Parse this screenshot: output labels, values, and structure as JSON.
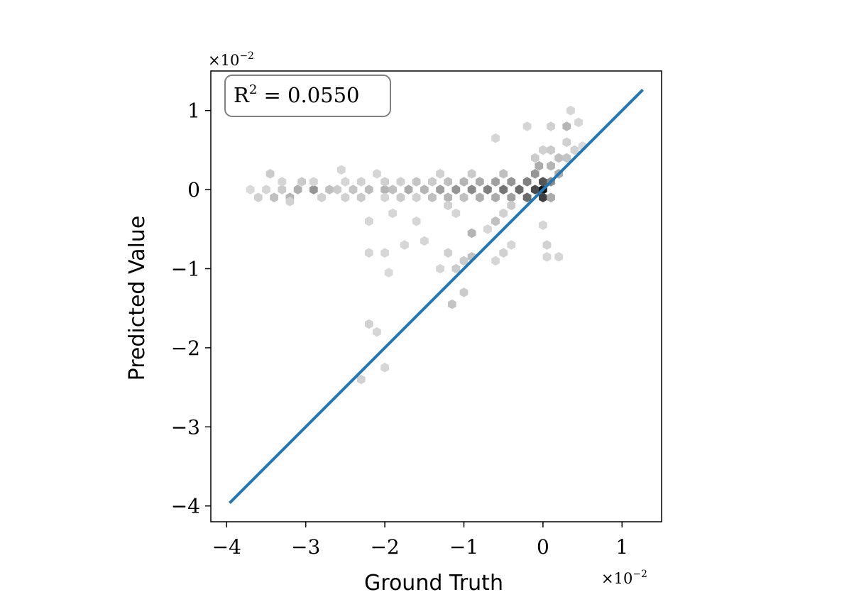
{
  "chart_data": {
    "type": "hexbin",
    "title": "",
    "xlabel": "Ground Truth",
    "ylabel": "Predicted Value",
    "x_multiplier": {
      "base": "×10",
      "exp": "−2"
    },
    "y_multiplier": {
      "base": "×10",
      "exp": "−2"
    },
    "xlim": [
      -4.2,
      1.5
    ],
    "ylim": [
      -4.2,
      1.5
    ],
    "xticks": [
      -4,
      -3,
      -2,
      -1,
      0,
      1
    ],
    "yticks": [
      -4,
      -3,
      -2,
      -1,
      0,
      1
    ],
    "xtick_labels": [
      "−4",
      "−3",
      "−2",
      "−1",
      "0",
      "1"
    ],
    "ytick_labels": [
      "−4",
      "−3",
      "−2",
      "−1",
      "0",
      "1"
    ],
    "grid": false,
    "annotation": {
      "r2_base": "R",
      "r2_sup": "2",
      "r2_rest": " = 0.0550",
      "placement": "top-left"
    },
    "fit_line": {
      "x": [
        -3.95,
        1.25
      ],
      "y": [
        -3.95,
        1.25
      ],
      "color": "#1f77b4"
    },
    "density_color": "#000000",
    "hexbins": [
      {
        "x": -3.7,
        "y": 0.0,
        "d": 0.08
      },
      {
        "x": -3.6,
        "y": -0.1,
        "d": 0.12
      },
      {
        "x": -3.5,
        "y": 0.0,
        "d": 0.1
      },
      {
        "x": -3.4,
        "y": -0.1,
        "d": 0.2
      },
      {
        "x": -3.3,
        "y": 0.0,
        "d": 0.15
      },
      {
        "x": -3.2,
        "y": -0.1,
        "d": 0.25
      },
      {
        "x": -3.3,
        "y": 0.1,
        "d": 0.1
      },
      {
        "x": -3.45,
        "y": 0.2,
        "d": 0.15
      },
      {
        "x": -3.2,
        "y": -0.15,
        "d": 0.12
      },
      {
        "x": -3.1,
        "y": 0.0,
        "d": 0.28
      },
      {
        "x": -3.05,
        "y": 0.1,
        "d": 0.15
      },
      {
        "x": -2.9,
        "y": 0.0,
        "d": 0.4
      },
      {
        "x": -2.8,
        "y": -0.1,
        "d": 0.12
      },
      {
        "x": -2.9,
        "y": 0.1,
        "d": 0.1
      },
      {
        "x": -2.7,
        "y": 0.0,
        "d": 0.2
      },
      {
        "x": -2.55,
        "y": 0.25,
        "d": 0.1
      },
      {
        "x": -2.6,
        "y": 0.0,
        "d": 0.15
      },
      {
        "x": -2.5,
        "y": 0.1,
        "d": 0.1
      },
      {
        "x": -2.5,
        "y": -0.1,
        "d": 0.12
      },
      {
        "x": -2.4,
        "y": 0.0,
        "d": 0.18
      },
      {
        "x": -2.3,
        "y": 0.1,
        "d": 0.12
      },
      {
        "x": -2.3,
        "y": -0.1,
        "d": 0.15
      },
      {
        "x": -2.2,
        "y": 0.0,
        "d": 0.22
      },
      {
        "x": -2.1,
        "y": 0.2,
        "d": 0.1
      },
      {
        "x": -2.0,
        "y": 0.0,
        "d": 0.25
      },
      {
        "x": -2.0,
        "y": 0.1,
        "d": 0.12
      },
      {
        "x": -2.0,
        "y": -0.1,
        "d": 0.1
      },
      {
        "x": -1.9,
        "y": 0.0,
        "d": 0.2
      },
      {
        "x": -1.8,
        "y": 0.1,
        "d": 0.12
      },
      {
        "x": -1.8,
        "y": -0.1,
        "d": 0.15
      },
      {
        "x": -1.7,
        "y": 0.0,
        "d": 0.3
      },
      {
        "x": -1.6,
        "y": 0.1,
        "d": 0.18
      },
      {
        "x": -1.6,
        "y": -0.1,
        "d": 0.12
      },
      {
        "x": -1.5,
        "y": 0.0,
        "d": 0.25
      },
      {
        "x": -1.4,
        "y": 0.1,
        "d": 0.15
      },
      {
        "x": -1.4,
        "y": -0.1,
        "d": 0.2
      },
      {
        "x": -1.3,
        "y": 0.0,
        "d": 0.35
      },
      {
        "x": -1.3,
        "y": 0.2,
        "d": 0.12
      },
      {
        "x": -1.2,
        "y": 0.1,
        "d": 0.2
      },
      {
        "x": -1.2,
        "y": -0.1,
        "d": 0.25
      },
      {
        "x": -1.1,
        "y": 0.0,
        "d": 0.4
      },
      {
        "x": -1.0,
        "y": 0.1,
        "d": 0.25
      },
      {
        "x": -1.0,
        "y": -0.1,
        "d": 0.2
      },
      {
        "x": -0.9,
        "y": 0.0,
        "d": 0.45
      },
      {
        "x": -0.9,
        "y": 0.2,
        "d": 0.15
      },
      {
        "x": -0.8,
        "y": 0.1,
        "d": 0.3
      },
      {
        "x": -0.8,
        "y": -0.1,
        "d": 0.28
      },
      {
        "x": -0.7,
        "y": 0.0,
        "d": 0.5
      },
      {
        "x": -0.6,
        "y": 0.1,
        "d": 0.35
      },
      {
        "x": -0.6,
        "y": -0.1,
        "d": 0.3
      },
      {
        "x": -0.5,
        "y": 0.0,
        "d": 0.55
      },
      {
        "x": -0.5,
        "y": 0.2,
        "d": 0.2
      },
      {
        "x": -0.4,
        "y": 0.1,
        "d": 0.4
      },
      {
        "x": -0.4,
        "y": -0.1,
        "d": 0.35
      },
      {
        "x": -0.3,
        "y": 0.0,
        "d": 0.6
      },
      {
        "x": -0.2,
        "y": 0.1,
        "d": 0.5
      },
      {
        "x": -0.2,
        "y": -0.1,
        "d": 0.6
      },
      {
        "x": -0.1,
        "y": 0.0,
        "d": 0.75
      },
      {
        "x": -0.1,
        "y": 0.2,
        "d": 0.4
      },
      {
        "x": 0.0,
        "y": 0.0,
        "d": 1.0
      },
      {
        "x": 0.0,
        "y": 0.1,
        "d": 0.7
      },
      {
        "x": 0.0,
        "y": -0.1,
        "d": 0.8
      },
      {
        "x": -0.05,
        "y": 0.3,
        "d": 0.3
      },
      {
        "x": 0.1,
        "y": 0.1,
        "d": 0.45
      },
      {
        "x": 0.1,
        "y": 0.3,
        "d": 0.25
      },
      {
        "x": 0.1,
        "y": -0.1,
        "d": 0.3
      },
      {
        "x": 0.2,
        "y": 0.4,
        "d": 0.2
      },
      {
        "x": 0.2,
        "y": 0.2,
        "d": 0.3
      },
      {
        "x": 0.3,
        "y": 0.4,
        "d": 0.18
      },
      {
        "x": 0.4,
        "y": 0.5,
        "d": 0.12
      },
      {
        "x": 0.5,
        "y": 0.55,
        "d": 0.08
      },
      {
        "x": 0.3,
        "y": 0.6,
        "d": 0.12
      },
      {
        "x": -0.1,
        "y": 0.4,
        "d": 0.15
      },
      {
        "x": 0.0,
        "y": 0.5,
        "d": 0.12
      },
      {
        "x": 0.1,
        "y": 0.5,
        "d": 0.15
      },
      {
        "x": 0.3,
        "y": 0.8,
        "d": 0.25
      },
      {
        "x": 0.1,
        "y": 0.8,
        "d": 0.12
      },
      {
        "x": -0.2,
        "y": 0.8,
        "d": 0.1
      },
      {
        "x": 0.35,
        "y": 1.0,
        "d": 0.1
      },
      {
        "x": 0.45,
        "y": 0.85,
        "d": 0.1
      },
      {
        "x": -0.6,
        "y": 0.65,
        "d": 0.1
      },
      {
        "x": -0.4,
        "y": -0.2,
        "d": 0.15
      },
      {
        "x": -0.5,
        "y": -0.3,
        "d": 0.12
      },
      {
        "x": -0.6,
        "y": -0.4,
        "d": 0.2
      },
      {
        "x": -0.7,
        "y": -0.5,
        "d": 0.1
      },
      {
        "x": -0.9,
        "y": -0.55,
        "d": 0.25
      },
      {
        "x": -1.2,
        "y": -0.2,
        "d": 0.12
      },
      {
        "x": -1.1,
        "y": -0.3,
        "d": 0.1
      },
      {
        "x": -1.6,
        "y": -0.4,
        "d": 0.1
      },
      {
        "x": -1.9,
        "y": -0.3,
        "d": 0.1
      },
      {
        "x": -2.2,
        "y": -0.4,
        "d": 0.1
      },
      {
        "x": -1.5,
        "y": -0.65,
        "d": 0.1
      },
      {
        "x": -1.75,
        "y": -0.7,
        "d": 0.1
      },
      {
        "x": -1.2,
        "y": -0.8,
        "d": 0.12
      },
      {
        "x": -1.0,
        "y": -0.9,
        "d": 0.15
      },
      {
        "x": -0.9,
        "y": -0.85,
        "d": 0.2
      },
      {
        "x": -1.1,
        "y": -1.0,
        "d": 0.15
      },
      {
        "x": -1.3,
        "y": -1.0,
        "d": 0.1
      },
      {
        "x": -1.0,
        "y": -1.3,
        "d": 0.15
      },
      {
        "x": -1.15,
        "y": -1.45,
        "d": 0.18
      },
      {
        "x": -2.0,
        "y": -0.8,
        "d": 0.1
      },
      {
        "x": -2.2,
        "y": -0.8,
        "d": 0.1
      },
      {
        "x": -1.95,
        "y": -1.05,
        "d": 0.08
      },
      {
        "x": -0.5,
        "y": -0.8,
        "d": 0.12
      },
      {
        "x": -0.4,
        "y": -0.7,
        "d": 0.1
      },
      {
        "x": 0.05,
        "y": -0.7,
        "d": 0.12
      },
      {
        "x": 0.05,
        "y": -0.85,
        "d": 0.1
      },
      {
        "x": 0.2,
        "y": -0.85,
        "d": 0.1
      },
      {
        "x": 0.0,
        "y": -0.45,
        "d": 0.1
      },
      {
        "x": -0.6,
        "y": -0.9,
        "d": 0.1
      },
      {
        "x": -2.2,
        "y": -1.7,
        "d": 0.12
      },
      {
        "x": -2.1,
        "y": -1.8,
        "d": 0.1
      },
      {
        "x": -2.0,
        "y": -2.25,
        "d": 0.1
      },
      {
        "x": -2.3,
        "y": -2.4,
        "d": 0.12
      }
    ]
  }
}
